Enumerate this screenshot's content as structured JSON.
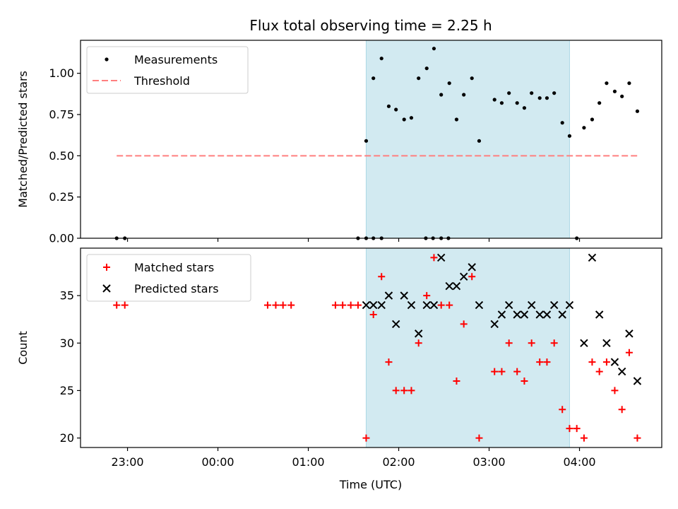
{
  "chart_data": {
    "type": "scatter",
    "title": "Flux total observing time = 2.25 h",
    "xlabel": "Time (UTC)",
    "x_range_hours": [
      22.48,
      28.91
    ],
    "x_ticks": [
      {
        "t": 23.0,
        "label": "23:00"
      },
      {
        "t": 24.0,
        "label": "00:00"
      },
      {
        "t": 25.0,
        "label": "01:00"
      },
      {
        "t": 26.0,
        "label": "02:00"
      },
      {
        "t": 27.0,
        "label": "03:00"
      },
      {
        "t": 28.0,
        "label": "04:00"
      }
    ],
    "shaded_interval_hours": [
      25.64,
      27.89
    ],
    "shade_color": "#add8e6",
    "panels": [
      {
        "ylabel": "Matched/Predicted stars",
        "ylim": [
          0,
          1.2
        ],
        "y_ticks": [
          {
            "v": 0.0,
            "label": "0.00"
          },
          {
            "v": 0.25,
            "label": "0.25"
          },
          {
            "v": 0.5,
            "label": "0.50"
          },
          {
            "v": 0.75,
            "label": "0.75"
          },
          {
            "v": 1.0,
            "label": "1.00"
          }
        ],
        "legend": [
          {
            "label": "Measurements",
            "marker": "dot",
            "color": "#000000"
          },
          {
            "label": "Threshold",
            "marker": "dashed-line",
            "color": "#ff7f7f"
          }
        ],
        "series": [
          {
            "name": "Measurements",
            "marker": "dot",
            "color": "#000000",
            "points": [
              [
                22.88,
                0.0
              ],
              [
                22.97,
                0.0
              ],
              [
                25.55,
                0.0
              ],
              [
                25.64,
                0.0
              ],
              [
                25.72,
                0.0
              ],
              [
                25.81,
                0.0
              ],
              [
                26.3,
                0.0
              ],
              [
                26.38,
                0.0
              ],
              [
                26.47,
                0.0
              ],
              [
                26.55,
                0.0
              ],
              [
                25.64,
                0.59
              ],
              [
                25.72,
                0.97
              ],
              [
                25.81,
                1.09
              ],
              [
                25.89,
                0.8
              ],
              [
                25.97,
                0.78
              ],
              [
                26.06,
                0.72
              ],
              [
                26.14,
                0.73
              ],
              [
                26.22,
                0.97
              ],
              [
                26.31,
                1.03
              ],
              [
                26.39,
                1.15
              ],
              [
                26.47,
                0.87
              ],
              [
                26.56,
                0.94
              ],
              [
                26.64,
                0.72
              ],
              [
                26.72,
                0.87
              ],
              [
                26.81,
                0.97
              ],
              [
                26.89,
                0.59
              ],
              [
                27.06,
                0.84
              ],
              [
                27.14,
                0.82
              ],
              [
                27.22,
                0.88
              ],
              [
                27.31,
                0.82
              ],
              [
                27.39,
                0.79
              ],
              [
                27.47,
                0.88
              ],
              [
                27.56,
                0.85
              ],
              [
                27.64,
                0.85
              ],
              [
                27.72,
                0.88
              ],
              [
                27.81,
                0.7
              ],
              [
                27.89,
                0.62
              ],
              [
                27.97,
                0.0
              ],
              [
                28.05,
                0.67
              ],
              [
                28.14,
                0.72
              ],
              [
                28.22,
                0.82
              ],
              [
                28.3,
                0.94
              ],
              [
                28.39,
                0.89
              ],
              [
                28.47,
                0.86
              ],
              [
                28.55,
                0.94
              ],
              [
                28.64,
                0.77
              ]
            ]
          },
          {
            "name": "Threshold",
            "marker": "dashed-line",
            "color": "#ff7f7f",
            "points": [
              [
                22.88,
                0.5
              ],
              [
                28.64,
                0.5
              ]
            ]
          }
        ]
      },
      {
        "ylabel": "Count",
        "ylim": [
          19.0,
          40.0
        ],
        "y_ticks": [
          {
            "v": 20,
            "label": "20"
          },
          {
            "v": 25,
            "label": "25"
          },
          {
            "v": 30,
            "label": "30"
          },
          {
            "v": 35,
            "label": "35"
          }
        ],
        "legend": [
          {
            "label": "Matched stars",
            "marker": "plus",
            "color": "#ff0000"
          },
          {
            "label": "Predicted stars",
            "marker": "x",
            "color": "#000000"
          }
        ],
        "series": [
          {
            "name": "Matched stars",
            "marker": "plus",
            "color": "#ff0000",
            "points": [
              [
                22.88,
                34
              ],
              [
                22.97,
                34
              ],
              [
                24.55,
                34
              ],
              [
                24.64,
                34
              ],
              [
                24.72,
                34
              ],
              [
                24.81,
                34
              ],
              [
                25.3,
                34
              ],
              [
                25.38,
                34
              ],
              [
                25.47,
                34
              ],
              [
                25.55,
                34
              ],
              [
                25.64,
                20
              ],
              [
                25.72,
                33
              ],
              [
                25.81,
                37
              ],
              [
                25.89,
                28
              ],
              [
                25.97,
                25
              ],
              [
                26.06,
                25
              ],
              [
                26.14,
                25
              ],
              [
                26.22,
                30
              ],
              [
                26.31,
                35
              ],
              [
                26.39,
                39
              ],
              [
                26.47,
                34
              ],
              [
                26.56,
                34
              ],
              [
                26.64,
                26
              ],
              [
                26.72,
                32
              ],
              [
                26.81,
                37
              ],
              [
                26.89,
                20
              ],
              [
                27.06,
                27
              ],
              [
                27.14,
                27
              ],
              [
                27.22,
                30
              ],
              [
                27.31,
                27
              ],
              [
                27.39,
                26
              ],
              [
                27.47,
                30
              ],
              [
                27.56,
                28
              ],
              [
                27.64,
                28
              ],
              [
                27.72,
                30
              ],
              [
                27.81,
                23
              ],
              [
                27.89,
                21
              ],
              [
                27.97,
                21
              ],
              [
                28.05,
                20
              ],
              [
                28.14,
                28
              ],
              [
                28.22,
                27
              ],
              [
                28.3,
                28
              ],
              [
                28.39,
                25
              ],
              [
                28.47,
                23
              ],
              [
                28.55,
                29
              ],
              [
                28.64,
                20
              ]
            ]
          },
          {
            "name": "Predicted stars",
            "marker": "x",
            "color": "#000000",
            "points": [
              [
                25.64,
                34
              ],
              [
                25.72,
                34
              ],
              [
                25.81,
                34
              ],
              [
                25.89,
                35
              ],
              [
                25.97,
                32
              ],
              [
                26.06,
                35
              ],
              [
                26.14,
                34
              ],
              [
                26.22,
                31
              ],
              [
                26.31,
                34
              ],
              [
                26.39,
                34
              ],
              [
                26.47,
                39
              ],
              [
                26.56,
                36
              ],
              [
                26.64,
                36
              ],
              [
                26.72,
                37
              ],
              [
                26.81,
                38
              ],
              [
                26.89,
                34
              ],
              [
                27.06,
                32
              ],
              [
                27.14,
                33
              ],
              [
                27.22,
                34
              ],
              [
                27.31,
                33
              ],
              [
                27.39,
                33
              ],
              [
                27.47,
                34
              ],
              [
                27.56,
                33
              ],
              [
                27.64,
                33
              ],
              [
                27.72,
                34
              ],
              [
                27.81,
                33
              ],
              [
                27.89,
                34
              ],
              [
                28.05,
                30
              ],
              [
                28.14,
                39
              ],
              [
                28.22,
                33
              ],
              [
                28.3,
                30
              ],
              [
                28.39,
                28
              ],
              [
                28.47,
                27
              ],
              [
                28.55,
                31
              ],
              [
                28.64,
                26
              ]
            ]
          }
        ]
      }
    ]
  }
}
